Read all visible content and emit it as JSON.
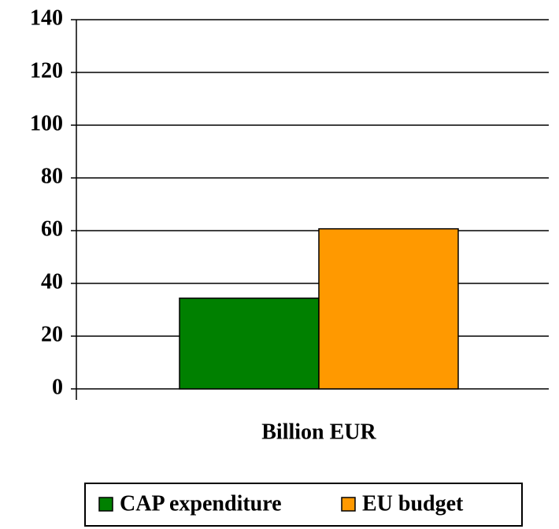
{
  "chart_data": {
    "type": "bar",
    "categories": [
      "Billion EUR"
    ],
    "series": [
      {
        "name": "CAP expenditure",
        "color": "#008000",
        "values": [
          34.4
        ]
      },
      {
        "name": "EU budget",
        "color": "#ff9900",
        "values": [
          60.7
        ]
      }
    ],
    "ylim": [
      0,
      140
    ],
    "yticks": [
      0,
      20,
      40,
      60,
      80,
      100,
      120,
      140
    ],
    "grid": true,
    "legend": "bottom"
  }
}
